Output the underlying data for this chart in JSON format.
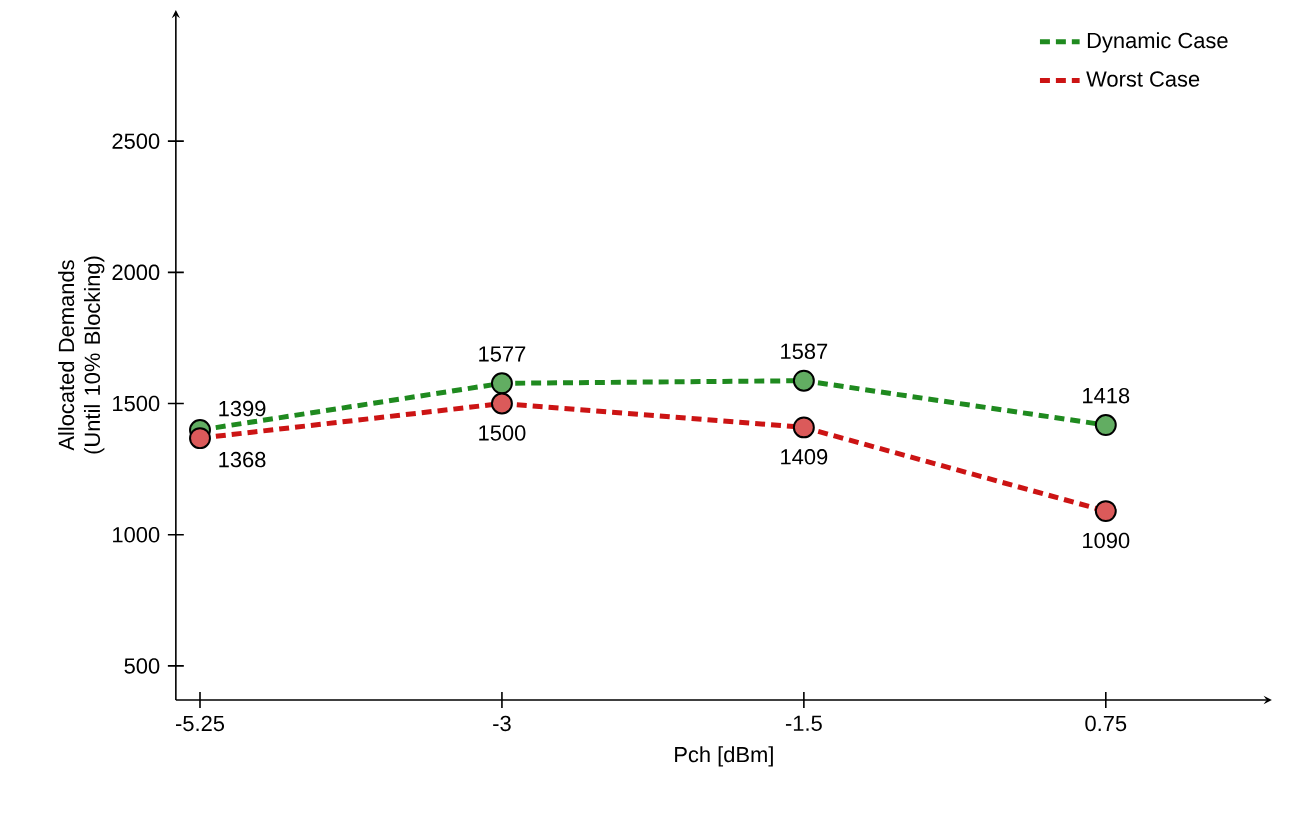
{
  "chart_data": {
    "type": "line",
    "xlabel": "Pch [dBm]",
    "ylabel": "Allocated Demands (Until 10% Blocking)",
    "categories": [
      "-5.25",
      "-3",
      "-1.5",
      "0.75"
    ],
    "series": [
      {
        "name": "Dynamic Case",
        "color": "#1f8a1f",
        "values": [
          1399,
          1577,
          1587,
          1418
        ]
      },
      {
        "name": "Worst Case",
        "color": "#cc1414",
        "values": [
          1368,
          1500,
          1409,
          1090
        ]
      }
    ],
    "ylim": [
      370,
      3000
    ],
    "yticks": [
      500,
      1000,
      1500,
      2000,
      2500
    ],
    "marker": "circle",
    "line_style": "dashed",
    "legend": "top right",
    "data_labels": true,
    "grid": false
  }
}
